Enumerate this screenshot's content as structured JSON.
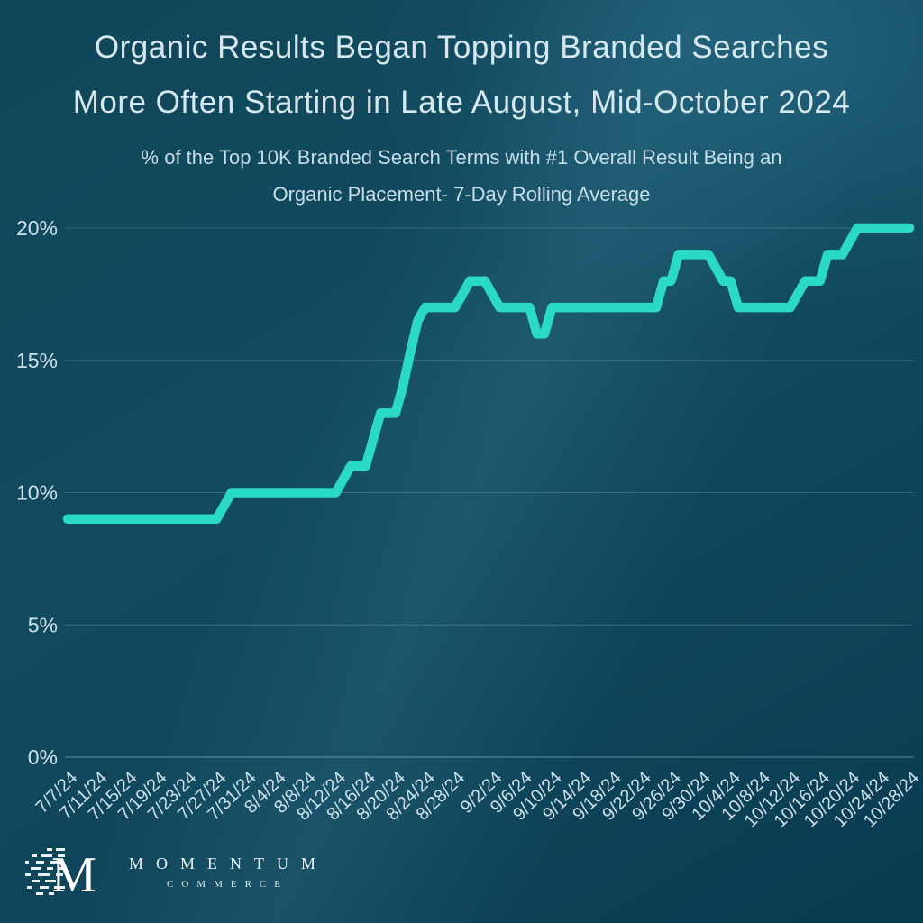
{
  "header": {
    "title_line1": "Organic Results Began Topping Branded Searches",
    "title_line2": "More Often Starting in Late August, Mid-October 2024",
    "subtitle_line1": "% of the Top 10K Branded Search Terms with #1 Overall Result Being an",
    "subtitle_line2": "Organic Placement- 7-Day Rolling Average"
  },
  "logo": {
    "monogram": "M",
    "name": "MOMENTUM",
    "subname": "COMMERCE"
  },
  "chart_data": {
    "type": "line",
    "title": "Organic Results Began Topping Branded Searches More Often Starting in Late August, Mid-October 2024",
    "subtitle": "% of the Top 10K Branded Search Terms with #1 Overall Result Being an Organic Placement- 7-Day Rolling Average",
    "xlabel": "",
    "ylabel": "",
    "ylim": [
      0,
      20
    ],
    "grid": true,
    "legend": "none",
    "line_color": "#2BD9C7",
    "grid_color": "rgba(205,230,240,0.20)",
    "axis_color": "rgba(205,230,240,0.45)",
    "tick_color": "#CDE1EA",
    "yticks": [
      {
        "value": 0,
        "label": "0%"
      },
      {
        "value": 5,
        "label": "5%"
      },
      {
        "value": 10,
        "label": "10%"
      },
      {
        "value": 15,
        "label": "15%"
      },
      {
        "value": 20,
        "label": "20%"
      }
    ],
    "xticks": [
      "7/7/24",
      "7/11/24",
      "7/15/24",
      "7/19/24",
      "7/23/24",
      "7/27/24",
      "7/31/24",
      "8/4/24",
      "8/8/24",
      "8/12/24",
      "8/16/24",
      "8/20/24",
      "8/24/24",
      "8/28/24",
      "9/2/24",
      "9/6/24",
      "9/10/24",
      "9/14/24",
      "9/18/24",
      "9/22/24",
      "9/26/24",
      "9/30/24",
      "10/4/24",
      "10/8/24",
      "10/12/24",
      "10/16/24",
      "10/20/24",
      "10/24/24",
      "10/28/24"
    ],
    "x": [
      "7/7/24",
      "7/8/24",
      "7/9/24",
      "7/10/24",
      "7/11/24",
      "7/12/24",
      "7/13/24",
      "7/14/24",
      "7/15/24",
      "7/16/24",
      "7/17/24",
      "7/18/24",
      "7/19/24",
      "7/20/24",
      "7/21/24",
      "7/22/24",
      "7/23/24",
      "7/24/24",
      "7/25/24",
      "7/26/24",
      "7/27/24",
      "7/28/24",
      "7/29/24",
      "7/30/24",
      "7/31/24",
      "8/1/24",
      "8/2/24",
      "8/3/24",
      "8/4/24",
      "8/5/24",
      "8/6/24",
      "8/7/24",
      "8/8/24",
      "8/9/24",
      "8/10/24",
      "8/11/24",
      "8/12/24",
      "8/13/24",
      "8/14/24",
      "8/15/24",
      "8/16/24",
      "8/17/24",
      "8/18/24",
      "8/19/24",
      "8/20/24",
      "8/21/24",
      "8/22/24",
      "8/23/24",
      "8/24/24",
      "8/25/24",
      "8/26/24",
      "8/27/24",
      "8/28/24",
      "8/29/24",
      "8/30/24",
      "8/31/24",
      "9/1/24",
      "9/2/24",
      "9/3/24",
      "9/4/24",
      "9/5/24",
      "9/6/24",
      "9/7/24",
      "9/8/24",
      "9/9/24",
      "9/10/24",
      "9/11/24",
      "9/12/24",
      "9/13/24",
      "9/14/24",
      "9/15/24",
      "9/16/24",
      "9/17/24",
      "9/18/24",
      "9/19/24",
      "9/20/24",
      "9/21/24",
      "9/22/24",
      "9/23/24",
      "9/24/24",
      "9/25/24",
      "9/26/24",
      "9/27/24",
      "9/28/24",
      "9/29/24",
      "9/30/24",
      "10/1/24",
      "10/2/24",
      "10/3/24",
      "10/4/24",
      "10/5/24",
      "10/6/24",
      "10/7/24",
      "10/8/24",
      "10/9/24",
      "10/10/24",
      "10/11/24",
      "10/12/24",
      "10/13/24",
      "10/14/24",
      "10/15/24",
      "10/16/24",
      "10/17/24",
      "10/18/24",
      "10/19/24",
      "10/20/24",
      "10/21/24",
      "10/22/24",
      "10/23/24",
      "10/24/24",
      "10/25/24",
      "10/26/24",
      "10/27/24",
      "10/28/24"
    ],
    "values": [
      9,
      9,
      9,
      9,
      9,
      9,
      9,
      9,
      9,
      9,
      9,
      9,
      9,
      9,
      9,
      9,
      9,
      9,
      9,
      9,
      9,
      9.5,
      10,
      10,
      10,
      10,
      10,
      10,
      10,
      10,
      10,
      10,
      10,
      10,
      10,
      10,
      10,
      10.5,
      11,
      11,
      11,
      12,
      13,
      13,
      13,
      14,
      15.3,
      16.5,
      17,
      17,
      17,
      17,
      17,
      17.5,
      18,
      18,
      18,
      17.5,
      17,
      17,
      17,
      17,
      17,
      16,
      16,
      17,
      17,
      17,
      17,
      17,
      17,
      17,
      17,
      17,
      17,
      17,
      17,
      17,
      17,
      17,
      18,
      18,
      19,
      19,
      19,
      19,
      19,
      18.5,
      18,
      18,
      17,
      17,
      17,
      17,
      17,
      17,
      17,
      17,
      17.5,
      18,
      18,
      18,
      19,
      19,
      19,
      19.5,
      20,
      20,
      20,
      20,
      20,
      20,
      20,
      20
    ]
  }
}
